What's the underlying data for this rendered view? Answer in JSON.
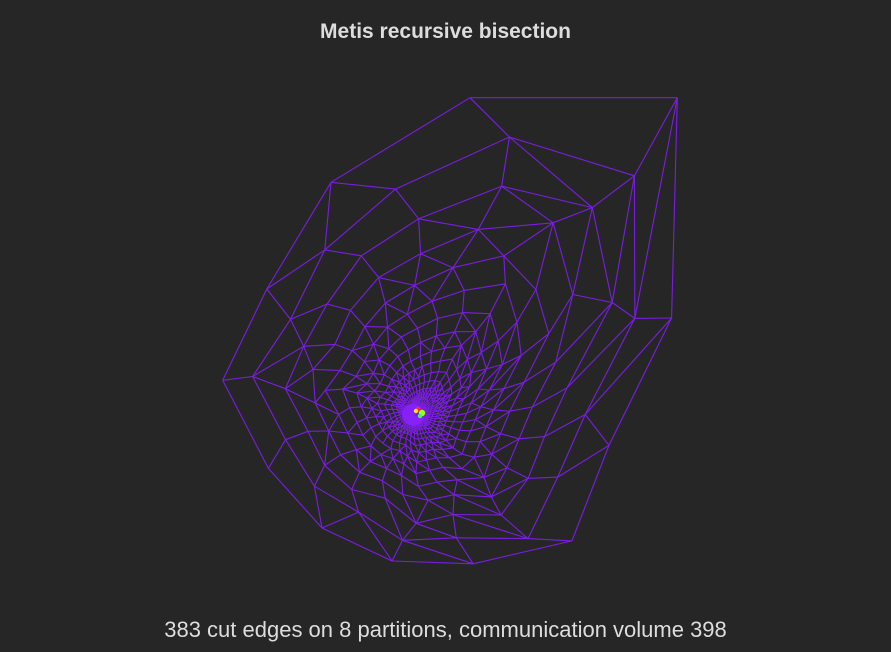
{
  "title": "Metis recursive bisection",
  "caption": "383 cut edges on 8 partitions, communication volume 398",
  "colors": {
    "background": "#262626",
    "text": "#dddddd",
    "mesh_edge": "#7a1ee0",
    "partition_markers": [
      "#ff2a2a",
      "#9cff1a",
      "#3cff3c",
      "#ffe21a"
    ]
  }
}
